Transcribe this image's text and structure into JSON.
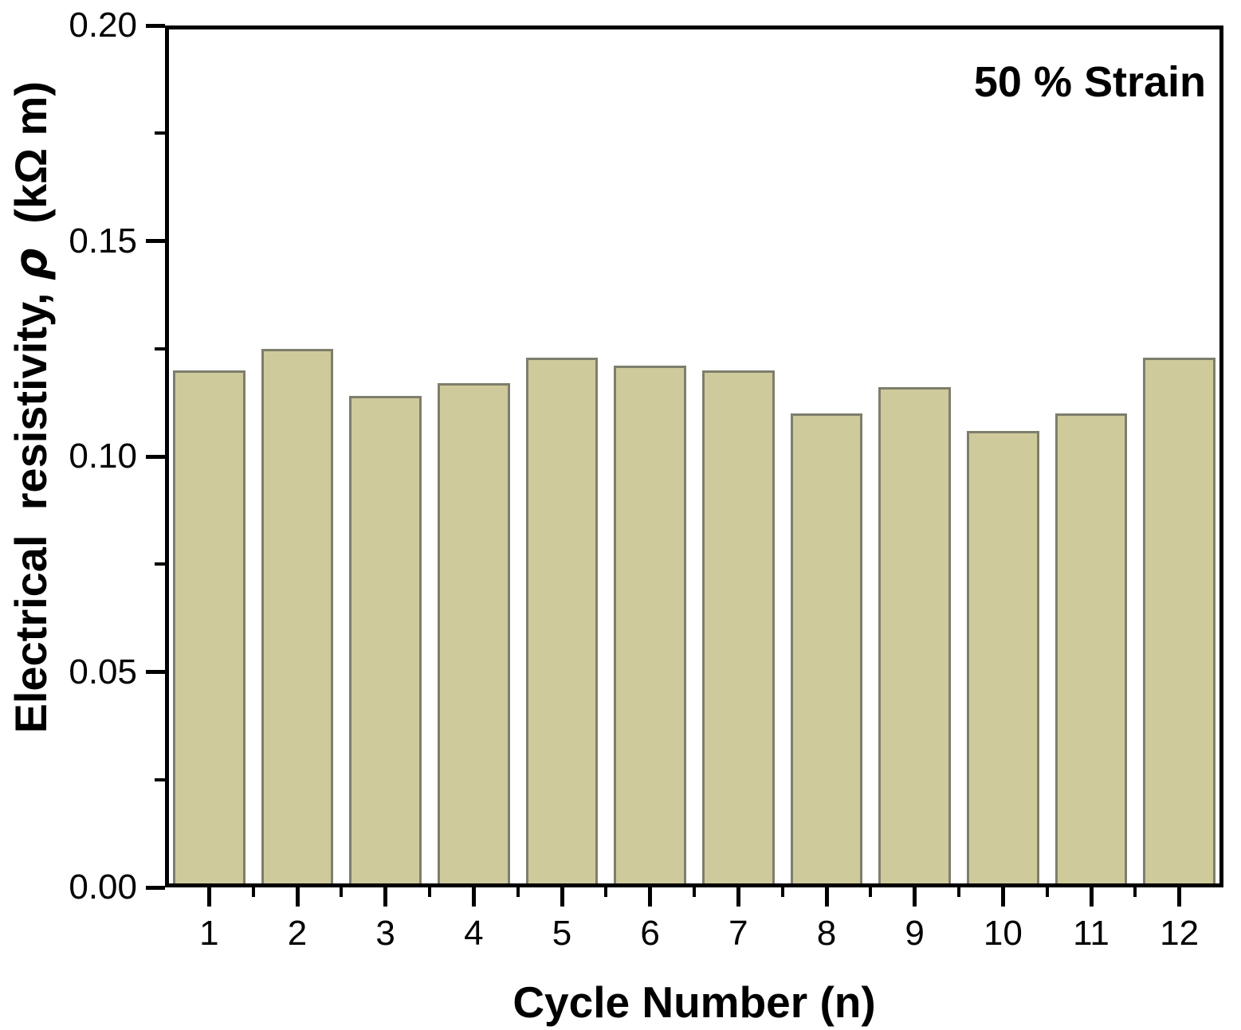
{
  "chart_data": {
    "type": "bar",
    "title": "",
    "xlabel": "Cycle Number (n)",
    "ylabel": "Electrical  resistivity, ρ  (kΩ m)",
    "ylabel_parts": {
      "prefix": "Electrical  resistivity, ",
      "symbol": "ρ",
      "suffix": "  (kΩ m)"
    },
    "annotation": "50 % Strain",
    "categories": [
      "1",
      "2",
      "3",
      "4",
      "5",
      "6",
      "7",
      "8",
      "9",
      "10",
      "11",
      "12"
    ],
    "values": [
      0.12,
      0.125,
      0.114,
      0.117,
      0.123,
      0.121,
      0.12,
      0.11,
      0.116,
      0.106,
      0.11,
      0.123
    ],
    "xlim": [
      0.5,
      12.5
    ],
    "ylim": [
      0.0,
      0.2
    ],
    "y_major_ticks": [
      "0.00",
      "0.05",
      "0.10",
      "0.15",
      "0.20"
    ],
    "y_minor_ticks": [
      0.025,
      0.075,
      0.125,
      0.175
    ],
    "x_major_ticks": [
      1,
      2,
      3,
      4,
      5,
      6,
      7,
      8,
      9,
      10,
      11,
      12
    ],
    "x_minor_ticks": [
      1.5,
      2.5,
      3.5,
      4.5,
      5.5,
      6.5,
      7.5,
      8.5,
      9.5,
      10.5,
      11.5
    ],
    "bar_width_fraction": 0.82,
    "grid": false,
    "legend": null,
    "colors": {
      "bar_fill": "#cfca9c",
      "bar_border": "#7e7e6c",
      "axis": "#000000",
      "background": "#ffffff",
      "text": "#000000"
    }
  }
}
